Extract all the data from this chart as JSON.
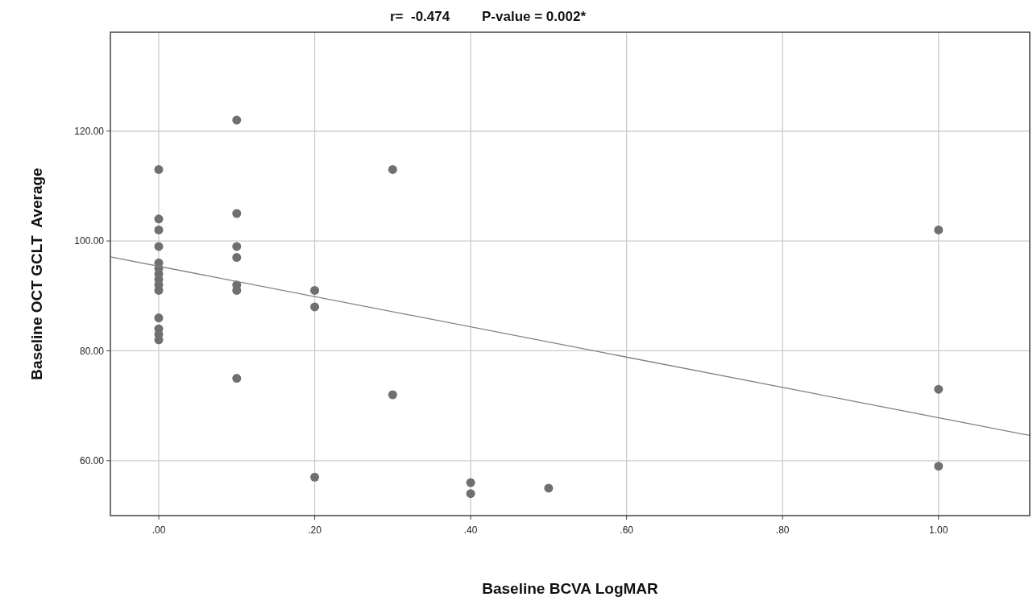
{
  "chart_data": {
    "type": "scatter",
    "xlabel": "Baseline BCVA LogMAR",
    "ylabel": "Baseline OCT GCLT  Average",
    "annotations": [
      "r=  -0.474",
      "P-value = 0.002*"
    ],
    "xlim": [
      -0.062,
      1.117
    ],
    "ylim": [
      50,
      138
    ],
    "xticks": [
      {
        "value": 0,
        "label": ".00"
      },
      {
        "value": 0.2,
        "label": ".20"
      },
      {
        "value": 0.4,
        "label": ".40"
      },
      {
        "value": 0.6,
        "label": ".60"
      },
      {
        "value": 0.8,
        "label": ".80"
      },
      {
        "value": 1,
        "label": "1.00"
      }
    ],
    "yticks": [
      {
        "value": 60,
        "label": "60.00"
      },
      {
        "value": 80,
        "label": "80.00"
      },
      {
        "value": 100,
        "label": "100.00"
      },
      {
        "value": 120,
        "label": "120.00"
      }
    ],
    "grid": true,
    "marker": "circle",
    "series": [
      {
        "color": "#707070",
        "x": [
          0,
          0,
          0,
          0,
          0,
          0,
          0,
          0,
          0,
          0,
          0,
          0,
          0,
          0,
          0.1,
          0.1,
          0.1,
          0.1,
          0.1,
          0.1,
          0.1,
          0.2,
          0.2,
          0.2,
          0.3,
          0.3,
          0.4,
          0.4,
          0.5,
          1,
          1,
          1
        ],
        "values": [
          113,
          104,
          102,
          99,
          96,
          95,
          94,
          93,
          92,
          91,
          86,
          84,
          83,
          82,
          122,
          105,
          99,
          97,
          92,
          91,
          75,
          91,
          88,
          57,
          113,
          72,
          56,
          54,
          55,
          102,
          73,
          59
        ]
      },
      {
        "type": "line",
        "color": "#808080",
        "x": [
          -0.062,
          1.117
        ],
        "values": [
          97.1,
          64.6
        ],
        "line_style": "solid",
        "marker": "none"
      }
    ]
  }
}
